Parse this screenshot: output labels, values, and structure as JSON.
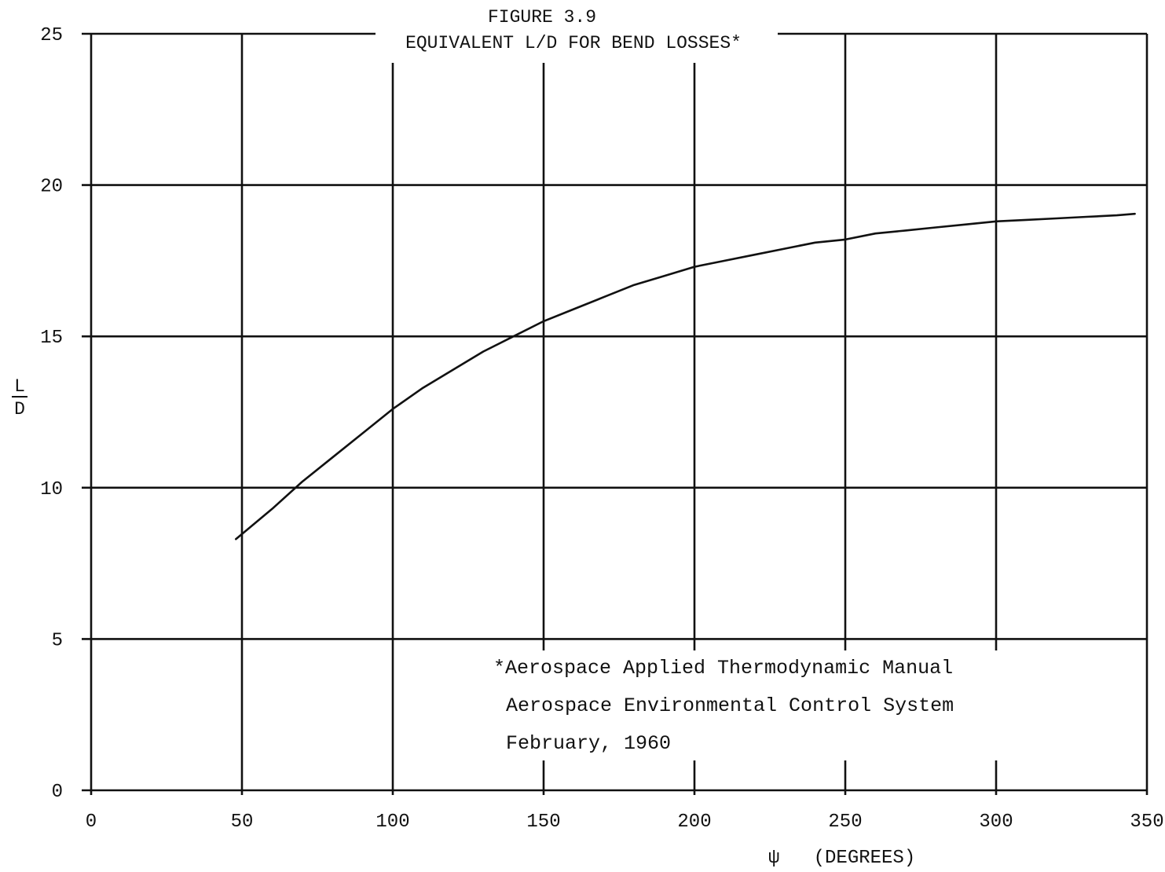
{
  "chart_data": {
    "type": "line",
    "title": "FIGURE 3.9",
    "subtitle": "EQUIVALENT L/D FOR BEND LOSSES*",
    "xlabel": "ψ   (DEGREES)",
    "ylabel_numerator": "L",
    "ylabel_denominator": "D",
    "xlim": [
      0,
      350
    ],
    "ylim": [
      0,
      25
    ],
    "x_ticks": [
      0,
      50,
      100,
      150,
      200,
      250,
      300,
      350
    ],
    "y_ticks": [
      0,
      5,
      10,
      15,
      20,
      25
    ],
    "grid": true,
    "series": [
      {
        "x": [
          48,
          60,
          70,
          80,
          90,
          100,
          110,
          120,
          130,
          140,
          150,
          160,
          170,
          180,
          190,
          200,
          210,
          220,
          230,
          240,
          250,
          260,
          270,
          280,
          290,
          300,
          310,
          320,
          330,
          340,
          346
        ],
        "y": [
          8.3,
          9.3,
          10.2,
          11.0,
          11.8,
          12.6,
          13.3,
          13.9,
          14.5,
          15.0,
          15.5,
          15.9,
          16.3,
          16.7,
          17.0,
          17.3,
          17.5,
          17.7,
          17.9,
          18.1,
          18.2,
          18.4,
          18.5,
          18.6,
          18.7,
          18.8,
          18.85,
          18.9,
          18.95,
          19.0,
          19.05
        ]
      }
    ],
    "annotation_lines": [
      "*Aerospace Applied Thermodynamic Manual",
      "Aerospace Environmental Control System",
      "February, 1960"
    ]
  }
}
